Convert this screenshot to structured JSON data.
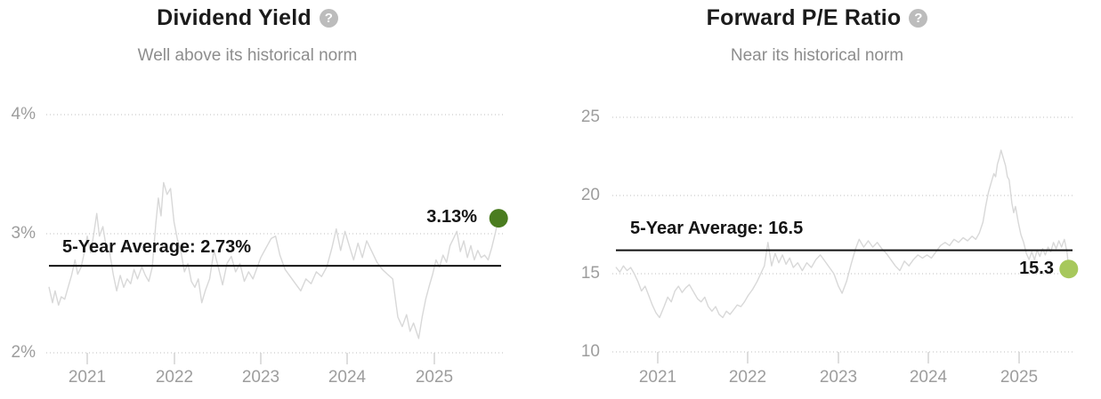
{
  "page": {
    "background": "#ffffff"
  },
  "icons": {
    "help_glyph": "?"
  },
  "chart_data": [
    {
      "id": "dividend-yield",
      "type": "line",
      "title": "Dividend Yield",
      "subtitle": "Well above its historical norm",
      "help_icon": "question-mark-circle-icon",
      "grid": "horizontal-dotted",
      "legend": "none",
      "line_color": "#d8d8d8",
      "x_axis": {
        "tick_labels": [
          "2021",
          "2022",
          "2023",
          "2024",
          "2025"
        ],
        "tick_years": [
          2021,
          2022,
          2023,
          2024,
          2025
        ]
      },
      "y_axis": {
        "tick_labels": [
          "4%",
          "3%",
          "2%"
        ],
        "tick_values": [
          4,
          3,
          2
        ],
        "unit": "%"
      },
      "xlim": [
        2020.5,
        2025.8
      ],
      "ylim": [
        1.95,
        4.1
      ],
      "average_line": {
        "value": 2.73,
        "label": "5-Year Average: 2.73%",
        "color": "#111111"
      },
      "current_point": {
        "value": 3.13,
        "label": "3.13%",
        "color": "#4a7c1f"
      },
      "series": [
        {
          "name": "Dividend Yield",
          "points": [
            [
              2020.56,
              2.55
            ],
            [
              2020.6,
              2.42
            ],
            [
              2020.63,
              2.52
            ],
            [
              2020.67,
              2.4
            ],
            [
              2020.7,
              2.47
            ],
            [
              2020.74,
              2.45
            ],
            [
              2020.78,
              2.55
            ],
            [
              2020.82,
              2.65
            ],
            [
              2020.86,
              2.78
            ],
            [
              2020.89,
              2.66
            ],
            [
              2020.93,
              2.72
            ],
            [
              2020.96,
              2.82
            ],
            [
              2021.0,
              2.98
            ],
            [
              2021.04,
              2.84
            ],
            [
              2021.08,
              3.02
            ],
            [
              2021.11,
              3.17
            ],
            [
              2021.14,
              2.98
            ],
            [
              2021.18,
              3.06
            ],
            [
              2021.22,
              2.88
            ],
            [
              2021.26,
              2.84
            ],
            [
              2021.3,
              2.66
            ],
            [
              2021.34,
              2.52
            ],
            [
              2021.38,
              2.65
            ],
            [
              2021.42,
              2.55
            ],
            [
              2021.46,
              2.62
            ],
            [
              2021.5,
              2.58
            ],
            [
              2021.54,
              2.7
            ],
            [
              2021.58,
              2.62
            ],
            [
              2021.63,
              2.72
            ],
            [
              2021.67,
              2.65
            ],
            [
              2021.71,
              2.6
            ],
            [
              2021.75,
              2.72
            ],
            [
              2021.79,
              3.08
            ],
            [
              2021.82,
              3.3
            ],
            [
              2021.85,
              3.15
            ],
            [
              2021.88,
              3.43
            ],
            [
              2021.92,
              3.33
            ],
            [
              2021.96,
              3.38
            ],
            [
              2022.0,
              3.1
            ],
            [
              2022.04,
              2.95
            ],
            [
              2022.08,
              2.85
            ],
            [
              2022.12,
              2.68
            ],
            [
              2022.16,
              2.75
            ],
            [
              2022.2,
              2.6
            ],
            [
              2022.24,
              2.55
            ],
            [
              2022.28,
              2.62
            ],
            [
              2022.32,
              2.42
            ],
            [
              2022.36,
              2.52
            ],
            [
              2022.41,
              2.62
            ],
            [
              2022.46,
              2.86
            ],
            [
              2022.51,
              2.72
            ],
            [
              2022.56,
              2.57
            ],
            [
              2022.61,
              2.75
            ],
            [
              2022.66,
              2.81
            ],
            [
              2022.71,
              2.68
            ],
            [
              2022.76,
              2.75
            ],
            [
              2022.81,
              2.6
            ],
            [
              2022.86,
              2.68
            ],
            [
              2022.91,
              2.62
            ],
            [
              2022.96,
              2.72
            ],
            [
              2023.0,
              2.8
            ],
            [
              2023.06,
              2.88
            ],
            [
              2023.12,
              2.96
            ],
            [
              2023.17,
              2.98
            ],
            [
              2023.22,
              2.82
            ],
            [
              2023.28,
              2.7
            ],
            [
              2023.34,
              2.64
            ],
            [
              2023.4,
              2.58
            ],
            [
              2023.46,
              2.52
            ],
            [
              2023.52,
              2.62
            ],
            [
              2023.58,
              2.58
            ],
            [
              2023.64,
              2.68
            ],
            [
              2023.7,
              2.64
            ],
            [
              2023.76,
              2.72
            ],
            [
              2023.82,
              2.88
            ],
            [
              2023.87,
              3.04
            ],
            [
              2023.92,
              2.86
            ],
            [
              2023.97,
              3.02
            ],
            [
              2024.02,
              2.9
            ],
            [
              2024.07,
              2.78
            ],
            [
              2024.12,
              2.92
            ],
            [
              2024.17,
              2.8
            ],
            [
              2024.22,
              2.94
            ],
            [
              2024.28,
              2.85
            ],
            [
              2024.34,
              2.76
            ],
            [
              2024.4,
              2.7
            ],
            [
              2024.46,
              2.66
            ],
            [
              2024.52,
              2.62
            ],
            [
              2024.58,
              2.3
            ],
            [
              2024.63,
              2.22
            ],
            [
              2024.68,
              2.32
            ],
            [
              2024.72,
              2.18
            ],
            [
              2024.76,
              2.25
            ],
            [
              2024.82,
              2.12
            ],
            [
              2024.86,
              2.3
            ],
            [
              2024.9,
              2.45
            ],
            [
              2024.94,
              2.56
            ],
            [
              2024.98,
              2.66
            ],
            [
              2025.02,
              2.78
            ],
            [
              2025.06,
              2.72
            ],
            [
              2025.1,
              2.82
            ],
            [
              2025.14,
              2.76
            ],
            [
              2025.18,
              2.9
            ],
            [
              2025.22,
              2.96
            ],
            [
              2025.26,
              3.02
            ],
            [
              2025.3,
              2.85
            ],
            [
              2025.34,
              2.94
            ],
            [
              2025.38,
              2.8
            ],
            [
              2025.42,
              2.9
            ],
            [
              2025.46,
              2.78
            ],
            [
              2025.5,
              2.86
            ],
            [
              2025.54,
              2.8
            ],
            [
              2025.58,
              2.82
            ],
            [
              2025.62,
              2.78
            ],
            [
              2025.66,
              2.88
            ],
            [
              2025.7,
              3.0
            ],
            [
              2025.74,
              3.13
            ]
          ]
        }
      ]
    },
    {
      "id": "forward-pe",
      "type": "line",
      "title": "Forward P/E Ratio",
      "subtitle": "Near its historical norm",
      "help_icon": "question-mark-circle-icon",
      "grid": "horizontal-dotted",
      "legend": "none",
      "line_color": "#d8d8d8",
      "x_axis": {
        "tick_labels": [
          "2021",
          "2022",
          "2023",
          "2024",
          "2025"
        ],
        "tick_years": [
          2021,
          2022,
          2023,
          2024,
          2025
        ]
      },
      "y_axis": {
        "tick_labels": [
          "25",
          "20",
          "15",
          "10"
        ],
        "tick_values": [
          25,
          20,
          15,
          10
        ],
        "unit": ""
      },
      "xlim": [
        2020.5,
        2025.6
      ],
      "ylim": [
        9.5,
        25.5
      ],
      "average_line": {
        "value": 16.5,
        "label": "5-Year Average: 16.5",
        "color": "#111111"
      },
      "current_point": {
        "value": 15.3,
        "label": "15.3",
        "color": "#a7c85c"
      },
      "series": [
        {
          "name": "Forward P/E Ratio",
          "points": [
            [
              2020.54,
              15.4
            ],
            [
              2020.58,
              15.1
            ],
            [
              2020.62,
              15.5
            ],
            [
              2020.66,
              15.2
            ],
            [
              2020.7,
              15.4
            ],
            [
              2020.74,
              15.0
            ],
            [
              2020.78,
              14.5
            ],
            [
              2020.82,
              13.9
            ],
            [
              2020.86,
              14.2
            ],
            [
              2020.9,
              13.6
            ],
            [
              2020.94,
              13.0
            ],
            [
              2020.98,
              12.5
            ],
            [
              2021.02,
              12.2
            ],
            [
              2021.07,
              12.9
            ],
            [
              2021.11,
              13.5
            ],
            [
              2021.15,
              13.2
            ],
            [
              2021.19,
              13.9
            ],
            [
              2021.23,
              14.2
            ],
            [
              2021.27,
              13.8
            ],
            [
              2021.31,
              14.1
            ],
            [
              2021.35,
              14.3
            ],
            [
              2021.4,
              13.8
            ],
            [
              2021.44,
              13.4
            ],
            [
              2021.48,
              13.2
            ],
            [
              2021.52,
              13.5
            ],
            [
              2021.56,
              12.9
            ],
            [
              2021.6,
              12.6
            ],
            [
              2021.64,
              12.9
            ],
            [
              2021.68,
              12.4
            ],
            [
              2021.72,
              12.2
            ],
            [
              2021.76,
              12.6
            ],
            [
              2021.8,
              12.4
            ],
            [
              2021.84,
              12.7
            ],
            [
              2021.88,
              13.0
            ],
            [
              2021.92,
              12.9
            ],
            [
              2021.96,
              13.2
            ],
            [
              2022.0,
              13.6
            ],
            [
              2022.05,
              14.0
            ],
            [
              2022.1,
              14.5
            ],
            [
              2022.14,
              15.0
            ],
            [
              2022.18,
              15.5
            ],
            [
              2022.22,
              17.0
            ],
            [
              2022.26,
              15.5
            ],
            [
              2022.3,
              16.3
            ],
            [
              2022.34,
              15.7
            ],
            [
              2022.38,
              16.2
            ],
            [
              2022.42,
              15.6
            ],
            [
              2022.46,
              16.0
            ],
            [
              2022.5,
              15.4
            ],
            [
              2022.55,
              15.7
            ],
            [
              2022.6,
              15.2
            ],
            [
              2022.65,
              15.7
            ],
            [
              2022.7,
              15.4
            ],
            [
              2022.75,
              15.9
            ],
            [
              2022.8,
              16.2
            ],
            [
              2022.85,
              15.8
            ],
            [
              2022.9,
              15.4
            ],
            [
              2022.95,
              15.0
            ],
            [
              2023.0,
              14.2
            ],
            [
              2023.04,
              13.75
            ],
            [
              2023.09,
              14.5
            ],
            [
              2023.14,
              15.6
            ],
            [
              2023.19,
              16.6
            ],
            [
              2023.23,
              17.2
            ],
            [
              2023.28,
              16.7
            ],
            [
              2023.33,
              17.1
            ],
            [
              2023.38,
              16.7
            ],
            [
              2023.43,
              17.0
            ],
            [
              2023.48,
              16.6
            ],
            [
              2023.53,
              16.3
            ],
            [
              2023.58,
              15.9
            ],
            [
              2023.63,
              15.5
            ],
            [
              2023.68,
              15.2
            ],
            [
              2023.73,
              15.8
            ],
            [
              2023.78,
              15.5
            ],
            [
              2023.83,
              15.9
            ],
            [
              2023.88,
              16.2
            ],
            [
              2023.93,
              16.0
            ],
            [
              2023.98,
              16.2
            ],
            [
              2024.03,
              16.0
            ],
            [
              2024.08,
              16.4
            ],
            [
              2024.13,
              16.8
            ],
            [
              2024.18,
              17.0
            ],
            [
              2024.23,
              16.8
            ],
            [
              2024.28,
              17.2
            ],
            [
              2024.33,
              17.0
            ],
            [
              2024.38,
              17.3
            ],
            [
              2024.43,
              17.1
            ],
            [
              2024.48,
              17.4
            ],
            [
              2024.52,
              17.2
            ],
            [
              2024.56,
              17.6
            ],
            [
              2024.6,
              18.3
            ],
            [
              2024.63,
              19.3
            ],
            [
              2024.66,
              20.2
            ],
            [
              2024.69,
              20.8
            ],
            [
              2024.72,
              21.4
            ],
            [
              2024.74,
              21.2
            ],
            [
              2024.76,
              22.0
            ],
            [
              2024.78,
              22.4
            ],
            [
              2024.8,
              22.9
            ],
            [
              2024.82,
              22.5
            ],
            [
              2024.85,
              21.9
            ],
            [
              2024.87,
              21.2
            ],
            [
              2024.89,
              21.0
            ],
            [
              2024.92,
              19.5
            ],
            [
              2024.94,
              18.9
            ],
            [
              2024.96,
              19.3
            ],
            [
              2024.99,
              18.3
            ],
            [
              2025.02,
              17.5
            ],
            [
              2025.05,
              17.0
            ],
            [
              2025.08,
              16.3
            ],
            [
              2025.11,
              15.9
            ],
            [
              2025.14,
              16.4
            ],
            [
              2025.17,
              15.9
            ],
            [
              2025.2,
              16.5
            ],
            [
              2025.23,
              16.1
            ],
            [
              2025.26,
              16.6
            ],
            [
              2025.29,
              16.2
            ],
            [
              2025.32,
              16.7
            ],
            [
              2025.35,
              16.4
            ],
            [
              2025.38,
              17.0
            ],
            [
              2025.41,
              16.6
            ],
            [
              2025.44,
              17.1
            ],
            [
              2025.47,
              16.7
            ],
            [
              2025.5,
              17.2
            ],
            [
              2025.53,
              16.4
            ],
            [
              2025.55,
              15.3
            ]
          ]
        }
      ]
    }
  ]
}
